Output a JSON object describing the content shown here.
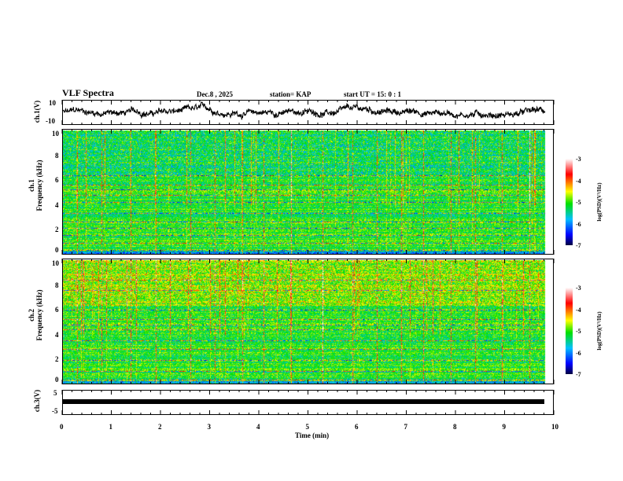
{
  "header": {
    "title": "VLF Spectra",
    "date": "Dec.8 , 2025",
    "station": "station= KAP",
    "start": "start  UT =   15: 0  : 1"
  },
  "colors": {
    "trace": "#000000"
  },
  "chart_data": [
    {
      "type": "line",
      "name": "ch1 waveform",
      "ylabel": "ch.1(V)",
      "ylim": [
        -10,
        10
      ],
      "yticks": [
        "10",
        "-10"
      ],
      "xlim": [
        0,
        10
      ],
      "x_end": 9.83
    },
    {
      "type": "heatmap",
      "name": "ch1 spectrogram",
      "ylabel": "Frequency (kHz)",
      "panel_label": "ch.1",
      "ylim": [
        0,
        10
      ],
      "yticks": [
        "0",
        "2",
        "4",
        "6",
        "8",
        "10"
      ],
      "xlim": [
        0,
        10
      ],
      "colorbar": {
        "label": "log(PSD)(V²/Hz)",
        "range": [
          -7,
          -3
        ],
        "ticks": [
          "-3",
          "-4",
          "-5",
          "-6",
          "-7"
        ]
      },
      "bursts_min": [
        0.3,
        0.8,
        1.4,
        1.9,
        2.6,
        3.1,
        3.67,
        4.1,
        4.65,
        5.3,
        5.9,
        6.4,
        6.9,
        7.35,
        7.9,
        8.4,
        8.95,
        9.5
      ],
      "bands_khz": [
        0.3,
        0.9,
        1.5,
        2.1,
        2.6,
        3.3,
        4.2,
        4.8,
        5.2,
        5.6,
        6.4
      ]
    },
    {
      "type": "heatmap",
      "name": "ch2 spectrogram",
      "ylabel": "Frequency (kHz)",
      "panel_label": "ch.2",
      "ylim": [
        0,
        10
      ],
      "yticks": [
        "0",
        "2",
        "4",
        "6",
        "8",
        "10"
      ],
      "xlim": [
        0,
        10
      ],
      "colorbar": {
        "label": "log(PSD)(V²/Hz)",
        "range": [
          -7,
          -3
        ],
        "ticks": [
          "-3",
          "-4",
          "-5",
          "-6",
          "-7"
        ]
      },
      "bursts_min": [
        0.3,
        0.8,
        1.4,
        1.9,
        2.6,
        3.1,
        3.67,
        4.1,
        4.65,
        5.3,
        5.9,
        6.4,
        6.9,
        7.35,
        7.9,
        8.4,
        8.95,
        9.5
      ],
      "bands_khz": [
        0.3,
        1.0,
        1.9,
        2.8,
        3.5,
        4.4,
        4.8,
        5.2,
        6.0,
        7.6,
        8.4
      ]
    },
    {
      "type": "line",
      "name": "ch3 waveform",
      "ylabel": "ch.3(V)",
      "ylim": [
        -5,
        5
      ],
      "yticks": [
        "5",
        "-5"
      ],
      "xlim": [
        0,
        10
      ],
      "value": 0,
      "x_end": 9.83,
      "xlabel": "Time (min)",
      "xticks": [
        "0",
        "1",
        "2",
        "3",
        "4",
        "5",
        "6",
        "7",
        "8",
        "9",
        "10"
      ]
    }
  ]
}
